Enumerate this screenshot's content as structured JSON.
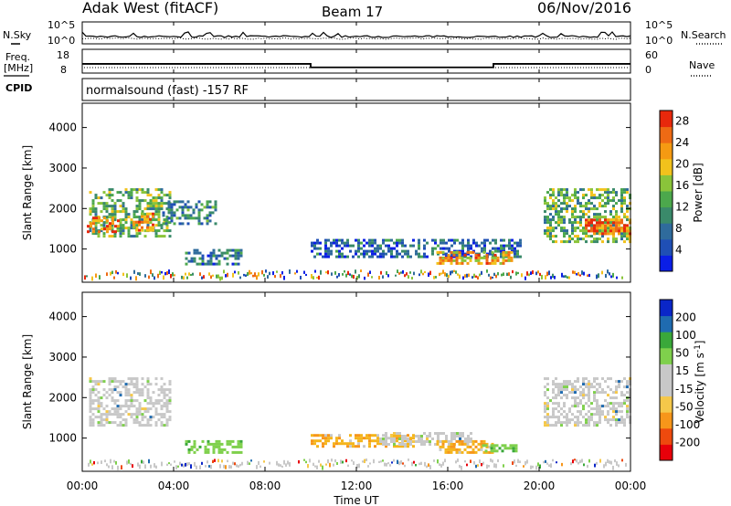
{
  "header": {
    "station": "Adak West (fitACF)",
    "beam": "Beam 17",
    "date": "06/Nov/2016"
  },
  "left_labels": {
    "nsky": "N.Sky",
    "freq_line1": "Freq.",
    "freq_line2": "[MHz]",
    "cpid": "CPID"
  },
  "right_labels": {
    "nsearch": "N.Search",
    "nave": "Nave"
  },
  "cpid_text": "normalsound (fast) -157 RF",
  "colors": {
    "power_scale": [
      "#0a1ee6",
      "#1f4fb5",
      "#2f6b9c",
      "#3a8a6a",
      "#4ca84c",
      "#8ac43a",
      "#f2c21c",
      "#f59a12",
      "#ee6a14",
      "#e8280c"
    ],
    "velocity_scale": [
      "#e8000a",
      "#ee4a0e",
      "#f7961a",
      "#f5c84a",
      "#c8c8c8",
      "#c8c8c8",
      "#7fd04c",
      "#3aa83a",
      "#1f6bb0",
      "#0a26c8"
    ]
  },
  "chart_data": [
    {
      "type": "line",
      "name": "noise-panel",
      "left_axis_ticks": [
        "10^5",
        "10^0"
      ],
      "right_axis_ticks": [
        "10^5",
        "10^0"
      ],
      "series": [
        {
          "name": "N.Sky",
          "style": "solid"
        },
        {
          "name": "N.Search",
          "style": "dotted"
        }
      ]
    },
    {
      "type": "line",
      "name": "freq-panel",
      "left_axis_ticks": [
        "18",
        "8"
      ],
      "right_axis_ticks": [
        "60",
        "0"
      ],
      "series": [
        {
          "name": "Freq",
          "x": [
            "00:00",
            "10:00",
            "10:00",
            "18:00",
            "18:00",
            "24:00"
          ],
          "values": [
            12.2,
            12.2,
            10.6,
            10.6,
            12.2,
            12.2
          ]
        },
        {
          "name": "Nave",
          "style": "dotted"
        }
      ]
    },
    {
      "type": "heatmap",
      "name": "power-panel",
      "ylabel": "Slant Range [km]",
      "yticks": [
        1000,
        2000,
        3000,
        4000
      ],
      "ylim": [
        180,
        4600
      ],
      "colorbar_label": "Power [dB]",
      "colorbar_ticks": [
        4,
        8,
        12,
        16,
        20,
        24,
        28
      ],
      "colorbar_range": [
        0,
        30
      ],
      "regions": [
        {
          "t0": 0.3,
          "t1": 3.8,
          "r0": 1300,
          "r1": 2500,
          "level": 0.45
        },
        {
          "t0": 0.2,
          "t1": 1.6,
          "r0": 1400,
          "r1": 1800,
          "level": 0.9
        },
        {
          "t0": 2.2,
          "t1": 3.1,
          "r0": 1450,
          "r1": 1900,
          "level": 0.8
        },
        {
          "t0": 3.5,
          "t1": 5.8,
          "r0": 1600,
          "r1": 2200,
          "level": 0.3
        },
        {
          "t0": 4.5,
          "t1": 7.0,
          "r0": 650,
          "r1": 1000,
          "level": 0.25
        },
        {
          "t0": 10.0,
          "t1": 19.2,
          "r0": 820,
          "r1": 1250,
          "level": 0.2
        },
        {
          "t0": 15.5,
          "t1": 18.8,
          "r0": 650,
          "r1": 950,
          "level": 0.75
        },
        {
          "t0": 20.2,
          "t1": 24.0,
          "r0": 1200,
          "r1": 2500,
          "level": 0.45
        },
        {
          "t0": 22.0,
          "t1": 24.0,
          "r0": 1350,
          "r1": 1750,
          "level": 0.9
        }
      ]
    },
    {
      "type": "heatmap",
      "name": "velocity-panel",
      "ylabel": "Slant Range [km]",
      "yticks": [
        1000,
        2000,
        3000,
        4000
      ],
      "ylim": [
        180,
        4600
      ],
      "colorbar_label": "Velocity [m s^-1]",
      "colorbar_ticks": [
        -200,
        -100,
        -50,
        -15,
        15,
        50,
        100,
        200
      ],
      "regions": [
        {
          "t0": 0.3,
          "t1": 3.8,
          "r0": 1300,
          "r1": 2500,
          "color": "gray"
        },
        {
          "t0": 4.5,
          "t1": 7.0,
          "r0": 650,
          "r1": 950,
          "color": "green"
        },
        {
          "t0": 10.0,
          "t1": 14.5,
          "r0": 820,
          "r1": 1100,
          "color": "orange"
        },
        {
          "t0": 13.0,
          "t1": 17.0,
          "r0": 820,
          "r1": 1150,
          "color": "gray"
        },
        {
          "t0": 15.5,
          "t1": 18.0,
          "r0": 650,
          "r1": 950,
          "color": "orange"
        },
        {
          "t0": 17.5,
          "t1": 19.0,
          "r0": 650,
          "r1": 850,
          "color": "green"
        },
        {
          "t0": 20.2,
          "t1": 24.0,
          "r0": 1300,
          "r1": 2500,
          "color": "gray"
        }
      ]
    }
  ],
  "time_axis": {
    "ticks": [
      "00:00",
      "04:00",
      "08:00",
      "12:00",
      "16:00",
      "20:00",
      "00:00"
    ],
    "label": "Time UT"
  }
}
